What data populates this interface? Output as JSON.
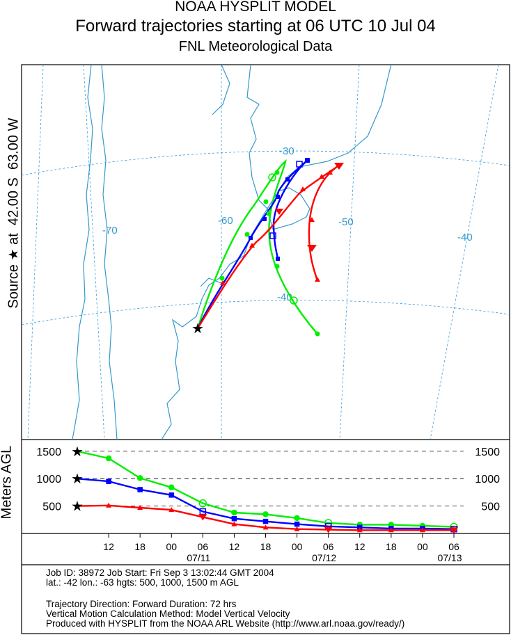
{
  "header": {
    "title_line1": "NOAA HYSPLIT MODEL",
    "title_line2": "Forward trajectories starting at 06 UTC 10 Jul 04",
    "title_line3": "FNL  Meteorological Data"
  },
  "side_label": {
    "text_a": "Source",
    "text_b": "at",
    "lat": "42.00 S",
    "lon": "63.00 W"
  },
  "map": {
    "lon_labels": [
      "-70",
      "-60",
      "-50",
      "-40"
    ],
    "lat_labels": [
      "-30",
      "-40"
    ]
  },
  "chart_data": {
    "type": "line",
    "title": "",
    "ylabel": "Meters AGL",
    "ylim": [
      0,
      1700
    ],
    "reference_heights": [
      500,
      1000,
      1500
    ],
    "ticks": [
      "12",
      "18",
      "00",
      "06",
      "12",
      "18",
      "00",
      "06",
      "12",
      "18",
      "00",
      "06"
    ],
    "date_labels": [
      "07/11",
      "07/12",
      "07/13"
    ],
    "x_hours": [
      0,
      6,
      12,
      18,
      24,
      30,
      36,
      42,
      48,
      54,
      60,
      66,
      72
    ],
    "series": [
      {
        "color": "#00ee00",
        "start_height": 1500,
        "values": [
          1500,
          1370,
          1010,
          840,
          550,
          380,
          350,
          280,
          190,
          160,
          160,
          140,
          120
        ]
      },
      {
        "color": "#0000ff",
        "start_height": 1000,
        "values": [
          1000,
          950,
          800,
          700,
          400,
          270,
          220,
          170,
          130,
          110,
          90,
          90,
          80
        ]
      },
      {
        "color": "#ff0000",
        "start_height": 500,
        "values": [
          500,
          510,
          470,
          430,
          300,
          170,
          110,
          80,
          70,
          60,
          60,
          60,
          60
        ]
      }
    ]
  },
  "footer": {
    "job_line": "Job ID: 38972          Job Start: Fri Sep  3 13:02:44 GMT 2004",
    "source_line": "lat.: -42  lon.: -63  hgts: 500, 1000, 1500 m AGL",
    "direction_line": "Trajectory Direction: Forward              Duration: 72 hrs",
    "vertical_line": "Vertical Motion Calculation Method: Model Vertical Velocity",
    "produced_line": "Produced with HYSPLIT from the NOAA ARL Website (http://www.arl.noaa.gov/ready/)"
  }
}
